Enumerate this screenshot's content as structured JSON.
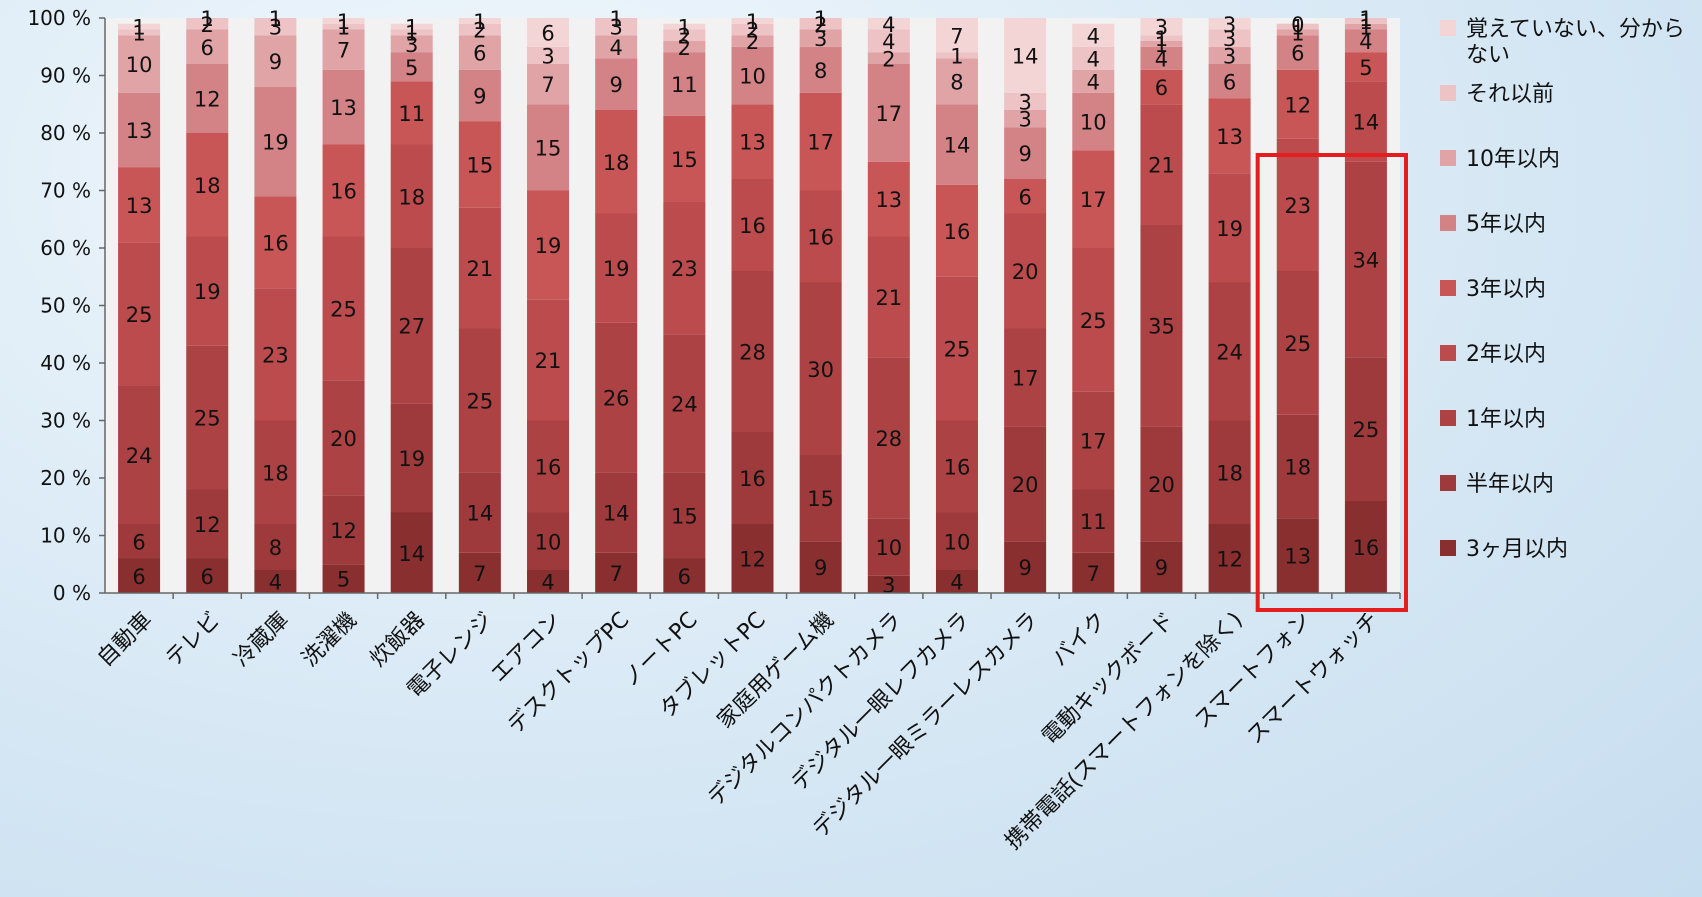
{
  "chart_data": {
    "type": "bar",
    "stacked": true,
    "categories": [
      "自動車",
      "テレビ",
      "冷蔵庫",
      "洗濯機",
      "炊飯器",
      "電子レンジ",
      "エアコン",
      "デスクトップPC",
      "ノートPC",
      "タブレットPC",
      "家庭用ゲーム機",
      "デジタルコンパクトカメラ",
      "デジタル一眼レフカメラ",
      "デジタル一眼ミラーレスカメラ",
      "バイク",
      "電動キックボード",
      "携帯電話(スマートフォンを除く)",
      "スマートフォン",
      "スマートウォッチ"
    ],
    "series": [
      {
        "name": "3ヶ月以内",
        "color": "#8a2f30",
        "values": [
          6,
          6,
          4,
          5,
          14,
          7,
          4,
          7,
          6,
          12,
          9,
          3,
          4,
          9,
          7,
          9,
          12,
          13,
          16
        ]
      },
      {
        "name": "半年以内",
        "color": "#9e3a3b",
        "values": [
          6,
          12,
          8,
          12,
          19,
          14,
          10,
          14,
          15,
          16,
          15,
          10,
          10,
          20,
          11,
          20,
          18,
          18,
          25
        ]
      },
      {
        "name": "1年以内",
        "color": "#ad4244",
        "values": [
          24,
          25,
          18,
          20,
          27,
          25,
          16,
          26,
          24,
          28,
          30,
          28,
          16,
          17,
          17,
          35,
          24,
          25,
          34
        ]
      },
      {
        "name": "2年以内",
        "color": "#bb4b4c",
        "values": [
          25,
          19,
          23,
          25,
          18,
          21,
          21,
          19,
          23,
          16,
          16,
          21,
          25,
          20,
          25,
          21,
          19,
          23,
          14
        ]
      },
      {
        "name": "3年以内",
        "color": "#c95657",
        "values": [
          13,
          18,
          16,
          16,
          11,
          15,
          19,
          18,
          15,
          13,
          17,
          13,
          16,
          6,
          17,
          6,
          13,
          12,
          5
        ]
      },
      {
        "name": "5年以内",
        "color": "#d38286",
        "values": [
          13,
          12,
          19,
          13,
          5,
          9,
          15,
          9,
          11,
          10,
          8,
          17,
          14,
          9,
          10,
          4,
          6,
          6,
          4
        ]
      },
      {
        "name": "10年以内",
        "color": "#e0a4a7",
        "values": [
          10,
          6,
          9,
          7,
          3,
          6,
          7,
          4,
          2,
          2,
          3,
          2,
          8,
          3,
          4,
          1,
          3,
          1,
          1
        ]
      },
      {
        "name": "それ以前",
        "color": "#edc3c5",
        "values": [
          1,
          2,
          3,
          1,
          1,
          2,
          3,
          3,
          2,
          2,
          2,
          4,
          1,
          3,
          4,
          1,
          3,
          1,
          1
        ]
      },
      {
        "name": "覚えていない、分からない",
        "color": "#f3d5d6",
        "values": [
          1,
          1,
          1,
          1,
          1,
          1,
          6,
          1,
          1,
          1,
          1,
          4,
          7,
          14,
          4,
          3,
          3,
          0,
          1
        ]
      }
    ],
    "ylim": [
      0,
      100
    ],
    "ytick_labels": [
      "0 %",
      "10 %",
      "20 %",
      "30 %",
      "40 %",
      "50 %",
      "60 %",
      "70 %",
      "80 %",
      "90 %",
      "100 %"
    ],
    "legend_position": "right",
    "legend_order": [
      "覚えていない、分からない",
      "それ以前",
      "10年以内",
      "5年以内",
      "3年以内",
      "2年以内",
      "1年以内",
      "半年以内",
      "3ヶ月以内"
    ],
    "highlight": {
      "categories": [
        "スマートフォン",
        "スマートウォッチ"
      ],
      "color": "#e41e1e"
    }
  }
}
